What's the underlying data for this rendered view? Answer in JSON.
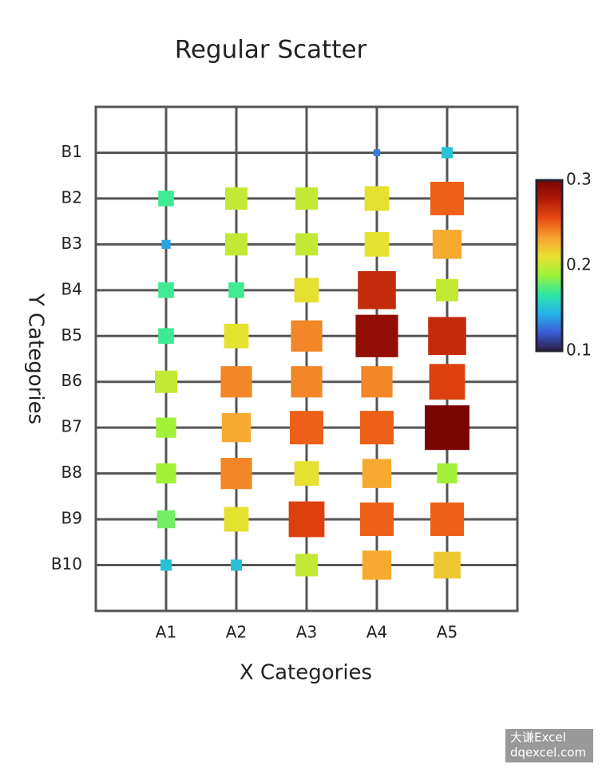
{
  "chart_data": {
    "type": "scatter",
    "title": "Regular Scatter",
    "x_label": "X Categories",
    "y_label": "Y Categories",
    "x_categories": [
      "A1",
      "A2",
      "A3",
      "A4",
      "A5"
    ],
    "y_categories": [
      "B1",
      "B2",
      "B3",
      "B4",
      "B5",
      "B6",
      "B7",
      "B8",
      "B9",
      "B10"
    ],
    "values": [
      [
        null,
        null,
        null,
        0.13,
        0.15
      ],
      [
        0.17,
        0.2,
        0.2,
        0.21,
        0.25
      ],
      [
        0.14,
        0.2,
        0.2,
        0.21,
        0.23
      ],
      [
        0.17,
        0.17,
        0.21,
        0.27,
        0.2
      ],
      [
        0.17,
        0.21,
        0.24,
        0.29,
        0.27
      ],
      [
        0.2,
        0.24,
        0.24,
        0.24,
        0.26
      ],
      [
        0.19,
        0.23,
        0.25,
        0.25,
        0.3
      ],
      [
        0.19,
        0.24,
        0.21,
        0.23,
        0.19
      ],
      [
        0.18,
        0.21,
        0.26,
        0.25,
        0.25
      ],
      [
        0.15,
        0.15,
        0.2,
        0.23,
        0.22
      ]
    ],
    "colorlim": [
      0.1,
      0.3
    ],
    "colorticks": [
      0.1,
      0.2,
      0.3
    ],
    "colorscale": [
      "#2b1b47",
      "#3b5fd9",
      "#25b6e8",
      "#2ee8a0",
      "#9ef23a",
      "#e8e030",
      "#f8a030",
      "#e84a10",
      "#b01a08",
      "#7a0403"
    ],
    "grid": true,
    "watermark": [
      "大谦Excel",
      "dqexcel.com"
    ]
  }
}
